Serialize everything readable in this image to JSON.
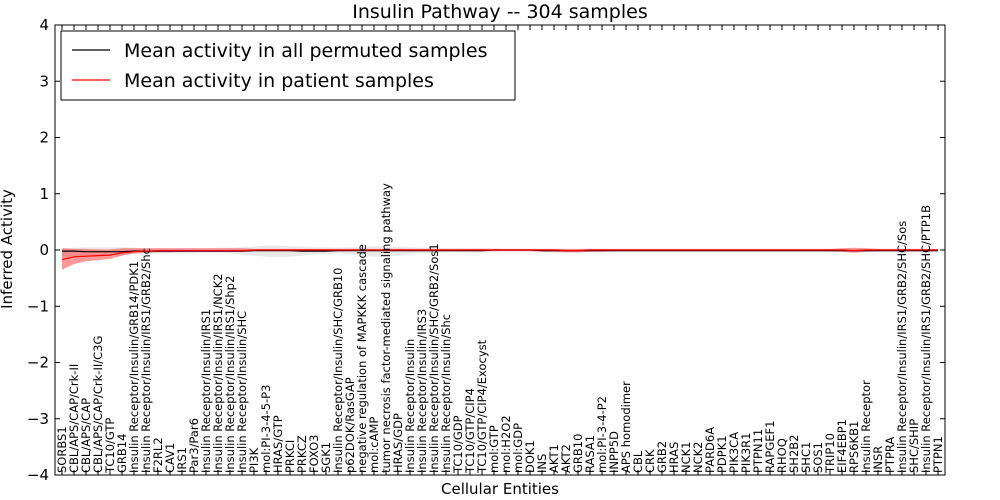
{
  "chart_data": {
    "type": "line",
    "title": "Insulin Pathway -- 304 samples",
    "xlabel": "Cellular Entities",
    "ylabel": "Inferred Activity",
    "ylim": [
      -4,
      4
    ],
    "yticks": [
      4,
      3,
      2,
      1,
      0,
      -1,
      -2,
      -3,
      -4
    ],
    "yticklabels": [
      "4",
      "3",
      "2",
      "1",
      "0",
      "−1",
      "−2",
      "−3",
      "−4"
    ],
    "grid": false,
    "legend_position": "top-left",
    "categories": [
      "SORBS1",
      "CBL/APS/CAP/Crk-II",
      "CBL/APS/CAP",
      "CBL/APS/CAP/Crk-II/C3G",
      "TC10/GTP",
      "GRB14",
      "Insulin Receptor/Insulin/GRB14/PDK1",
      "Insulin Receptor/Insulin/IRS1/GRB2/Shc",
      "F2RL2",
      "CAV1",
      "IRS1",
      "Par3/Par6",
      "Insulin Receptor/Insulin/IRS1",
      "Insulin Receptor/Insulin/IRS1/NCK2",
      "Insulin Receptor/Insulin/IRS1/Shp2",
      "Insulin Receptor/Insulin/SHC",
      "PI3K",
      "mol:PI-3-4-5-P3",
      "HRAS/GTP",
      "PRKCI",
      "PRKCZ",
      "FOXO3",
      "SGK1",
      "Insulin Receptor/Insulin/SHC/GRB10",
      "p62DOK/RasGAP",
      "negative regulation of MAPKKK cascade",
      "mol:cAMP",
      "tumor necrosis factor-mediated signaling pathway",
      "HRAS/GDP",
      "Insulin Receptor/Insulin",
      "Insulin Receptor/Insulin/IRS3",
      "Insulin Receptor/Insulin/SHC/GRB2/Sos1",
      "Insulin Receptor/Insulin/Shc",
      "TC10/GDP",
      "TC10/GTP/CIP4",
      "TC10/GTP/CIP4/Exocyst",
      "mol:GTP",
      "mol:H2O2",
      "mol:GDP",
      "DOK1",
      "INS",
      "AKT1",
      "AKT2",
      "GRB10",
      "RASA1",
      "mol:PI-3-4-P2",
      "INPP5D",
      "APS homodimer",
      "CBL",
      "CRK",
      "GRB2",
      "HRAS",
      "NCK1",
      "NCK2",
      "PARD6A",
      "PDPK1",
      "PIK3CA",
      "PIK3R1",
      "PTPN11",
      "RAPGEF1",
      "RHOQ",
      "SH2B2",
      "SHC1",
      "SOS1",
      "TRIP10",
      "EIF4EBP1",
      "RPS6KB1",
      "Insulin Receptor",
      "INSR",
      "PTPRA",
      "Insulin Receptor/Insulin/IRS1/GRB2/SHC/Sos",
      "SHC/SHIP",
      "Insulin Receptor/Insulin/IRS1/GRB2/SHC/PTP1B",
      "PTPN1"
    ],
    "series": [
      {
        "name": "Mean activity in all permuted samples",
        "color": "#000000",
        "values": [
          -0.02,
          -0.02,
          -0.03,
          -0.03,
          -0.03,
          -0.03,
          -0.02,
          -0.02,
          -0.02,
          -0.02,
          -0.02,
          -0.02,
          -0.02,
          -0.02,
          -0.02,
          -0.02,
          -0.01,
          -0.01,
          -0.01,
          -0.01,
          -0.02,
          -0.02,
          -0.02,
          -0.01,
          -0.01,
          -0.01,
          -0.01,
          -0.01,
          -0.01,
          -0.01,
          -0.01,
          -0.01,
          -0.01,
          -0.01,
          -0.01,
          -0.01,
          0,
          0,
          0,
          0,
          -0.01,
          -0.01,
          -0.01,
          -0.01,
          -0.01,
          -0.01,
          -0.01,
          -0.01,
          -0.01,
          -0.01,
          -0.01,
          -0.01,
          -0.01,
          -0.01,
          -0.01,
          -0.01,
          -0.01,
          -0.01,
          -0.01,
          -0.01,
          -0.01,
          -0.01,
          -0.01,
          -0.01,
          -0.01,
          -0.01,
          -0.01,
          -0.01,
          -0.01,
          -0.01,
          -0.01,
          -0.01,
          -0.01,
          -0.01
        ],
        "band": {
          "color": "#9a9a9a",
          "lower": [
            -0.12,
            -0.11,
            -0.1,
            -0.09,
            -0.09,
            -0.09,
            -0.07,
            -0.06,
            -0.06,
            -0.06,
            -0.06,
            -0.06,
            -0.05,
            -0.05,
            -0.06,
            -0.08,
            -0.1,
            -0.12,
            -0.13,
            -0.12,
            -0.1,
            -0.08,
            -0.07,
            -0.06,
            -0.08,
            -0.1,
            -0.12,
            -0.12,
            -0.09,
            -0.07,
            -0.06,
            -0.05,
            -0.04,
            -0.04,
            -0.05,
            -0.05,
            -0.04,
            -0.03,
            -0.03,
            -0.04,
            -0.04,
            -0.05,
            -0.05,
            -0.05,
            -0.04,
            -0.04,
            -0.04,
            -0.04,
            -0.04,
            -0.04,
            -0.04,
            -0.04,
            -0.04,
            -0.04,
            -0.04,
            -0.04,
            -0.04,
            -0.04,
            -0.04,
            -0.04,
            -0.04,
            -0.04,
            -0.04,
            -0.04,
            -0.04,
            -0.04,
            -0.04,
            -0.04,
            -0.04,
            -0.04,
            -0.04,
            -0.04,
            -0.04,
            -0.04
          ],
          "upper": [
            0.03,
            0.04,
            0.05,
            0.05,
            0.05,
            0.05,
            0.04,
            0.03,
            0.03,
            0.03,
            0.03,
            0.03,
            0.03,
            0.04,
            0.04,
            0.05,
            0.06,
            0.08,
            0.08,
            0.07,
            0.06,
            0.05,
            0.05,
            0.04,
            0.05,
            0.06,
            0.07,
            0.07,
            0.06,
            0.05,
            0.04,
            0.03,
            0.03,
            0.03,
            0.03,
            0.03,
            0.03,
            0.02,
            0.02,
            0.02,
            0.02,
            0.02,
            0.02,
            0.02,
            0.02,
            0.02,
            0.02,
            0.02,
            0.02,
            0.02,
            0.02,
            0.02,
            0.02,
            0.02,
            0.02,
            0.02,
            0.02,
            0.02,
            0.02,
            0.02,
            0.02,
            0.02,
            0.02,
            0.02,
            0.02,
            0.02,
            0.02,
            0.02,
            0.02,
            0.02,
            0.02,
            0.02,
            0.02,
            0.02
          ]
        }
      },
      {
        "name": "Mean activity in patient samples",
        "color": "#ff0000",
        "values": [
          -0.17,
          -0.12,
          -0.11,
          -0.1,
          -0.09,
          -0.05,
          -0.03,
          -0.02,
          -0.01,
          -0.01,
          -0.01,
          -0.01,
          -0.01,
          -0.01,
          -0.01,
          -0.01,
          0,
          0,
          0,
          0,
          0,
          0,
          0,
          0,
          0,
          0,
          0,
          0,
          0,
          0,
          0,
          0,
          0,
          0,
          0,
          0,
          0,
          0,
          0,
          0,
          0,
          0,
          -0.01,
          -0.01,
          0,
          0,
          0,
          0,
          0,
          0,
          0,
          0,
          0,
          0,
          0,
          0,
          0,
          0,
          0,
          0,
          0,
          0,
          0,
          0,
          0,
          0,
          -0.01,
          0,
          0,
          0,
          0,
          0,
          0,
          0
        ],
        "band": {
          "color": "#ff0000",
          "lower": [
            -0.35,
            -0.25,
            -0.2,
            -0.18,
            -0.16,
            -0.1,
            -0.06,
            -0.05,
            -0.04,
            -0.04,
            -0.03,
            -0.03,
            -0.03,
            -0.03,
            -0.03,
            -0.03,
            -0.02,
            -0.02,
            -0.02,
            -0.02,
            -0.02,
            -0.02,
            -0.02,
            -0.02,
            -0.02,
            -0.02,
            -0.02,
            -0.02,
            -0.02,
            -0.02,
            -0.02,
            -0.02,
            -0.02,
            -0.02,
            -0.02,
            -0.02,
            -0.02,
            -0.02,
            -0.02,
            -0.02,
            -0.03,
            -0.03,
            -0.04,
            -0.04,
            -0.03,
            -0.03,
            -0.02,
            -0.02,
            -0.02,
            -0.02,
            -0.02,
            -0.02,
            -0.02,
            -0.02,
            -0.02,
            -0.02,
            -0.02,
            -0.02,
            -0.02,
            -0.02,
            -0.02,
            -0.02,
            -0.02,
            -0.02,
            -0.02,
            -0.03,
            -0.05,
            -0.03,
            -0.02,
            -0.02,
            -0.02,
            -0.02,
            -0.02,
            -0.02
          ],
          "upper": [
            0.03,
            0.02,
            0.02,
            0.01,
            0.01,
            0.03,
            0.03,
            0.03,
            0.03,
            0.03,
            0.03,
            0.03,
            0.03,
            0.03,
            0.03,
            0.03,
            0.02,
            0.02,
            0.02,
            0.02,
            0.02,
            0.02,
            0.02,
            0.02,
            0.02,
            0.02,
            0.02,
            0.02,
            0.02,
            0.02,
            0.02,
            0.02,
            0.02,
            0.02,
            0.02,
            0.02,
            0.02,
            0.02,
            0.02,
            0.02,
            0.02,
            0.02,
            0.02,
            0.02,
            0.02,
            0.02,
            0.02,
            0.02,
            0.02,
            0.02,
            0.02,
            0.02,
            0.02,
            0.02,
            0.02,
            0.02,
            0.02,
            0.02,
            0.02,
            0.02,
            0.02,
            0.02,
            0.02,
            0.02,
            0.02,
            0.03,
            0.04,
            0.03,
            0.02,
            0.02,
            0.02,
            0.02,
            0.02,
            0.02
          ]
        }
      }
    ]
  }
}
